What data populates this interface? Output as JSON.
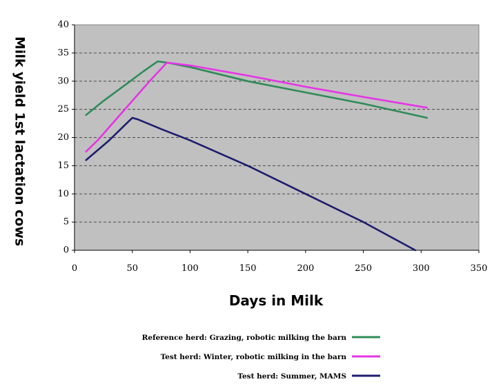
{
  "chart_data": {
    "type": "line",
    "title": "",
    "xlabel": "Days in Milk",
    "ylabel": "Milk yield 1st lactation cows",
    "xlim": [
      0,
      350
    ],
    "ylim": [
      0,
      40
    ],
    "xticks": [
      0,
      50,
      100,
      150,
      200,
      250,
      300,
      350
    ],
    "yticks": [
      0,
      5,
      10,
      15,
      20,
      25,
      30,
      35,
      40
    ],
    "grid": "horizontal dashed",
    "plot_background": "#c0c0c0",
    "legend_position": "bottom",
    "series": [
      {
        "name": "Reference herd: Grazing, robotic milking the barn",
        "color": "#2e8b57",
        "points": [
          [
            10,
            24
          ],
          [
            25,
            26.5
          ],
          [
            45,
            29.5
          ],
          [
            60,
            31.8
          ],
          [
            72,
            33.5
          ],
          [
            80,
            33.3
          ],
          [
            100,
            32.5
          ],
          [
            150,
            30
          ],
          [
            200,
            28
          ],
          [
            250,
            26
          ],
          [
            305,
            23.5
          ]
        ]
      },
      {
        "name": "Test  herd: Winter, robotic milking in the barn",
        "color": "#e633e6",
        "points": [
          [
            10,
            17.5
          ],
          [
            20,
            19.5
          ],
          [
            35,
            23
          ],
          [
            50,
            26.5
          ],
          [
            65,
            30
          ],
          [
            80,
            33.3
          ],
          [
            100,
            32.8
          ],
          [
            150,
            31
          ],
          [
            200,
            29
          ],
          [
            250,
            27.2
          ],
          [
            305,
            25.3
          ]
        ]
      },
      {
        "name": "Test  herd: Summer, MAMS",
        "color": "#1c1c6e",
        "points": [
          [
            10,
            16
          ],
          [
            30,
            19.5
          ],
          [
            50,
            23.5
          ],
          [
            55,
            23.2
          ],
          [
            75,
            21.5
          ],
          [
            100,
            19.5
          ],
          [
            150,
            15
          ],
          [
            200,
            10
          ],
          [
            250,
            5
          ],
          [
            295,
            0
          ]
        ]
      }
    ]
  }
}
